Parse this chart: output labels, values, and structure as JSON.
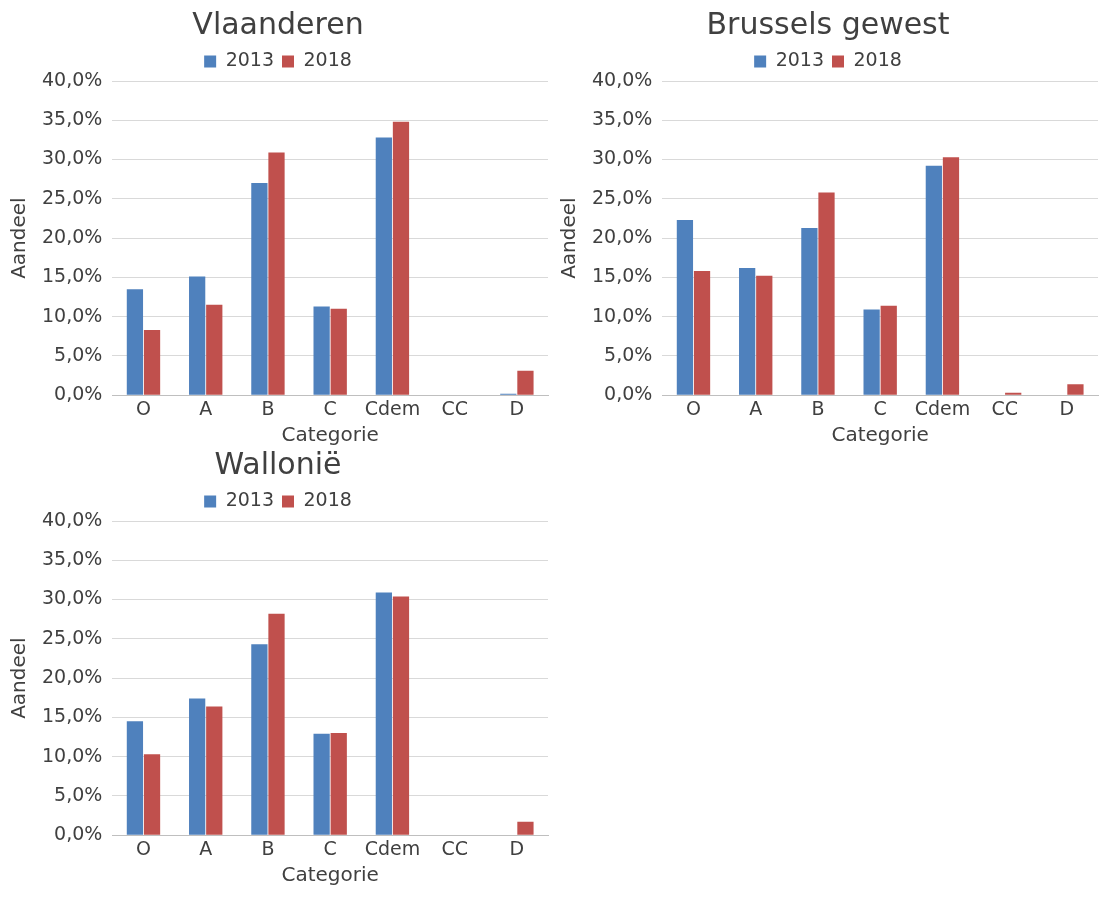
{
  "chart_data": [
    {
      "type": "bar",
      "title": "Vlaanderen",
      "xlabel": "Categorie",
      "ylabel": "Aandeel",
      "categories": [
        "O",
        "A",
        "B",
        "C",
        "Cdem",
        "CC",
        "D"
      ],
      "series": [
        {
          "name": "2013",
          "color": "#4f81bd",
          "values": [
            13.5,
            15.1,
            27.0,
            11.3,
            32.8,
            0,
            0.2
          ]
        },
        {
          "name": "2018",
          "color": "#c0504d",
          "values": [
            8.3,
            11.5,
            30.9,
            11.0,
            34.8,
            0,
            3.1
          ]
        }
      ],
      "ylim": [
        0,
        40
      ],
      "yticks": [
        {
          "value": 0,
          "label": "0,0%"
        },
        {
          "value": 5,
          "label": "5,0%"
        },
        {
          "value": 10,
          "label": "10,0%"
        },
        {
          "value": 15,
          "label": "15,0%"
        },
        {
          "value": 20,
          "label": "20,0%"
        },
        {
          "value": 25,
          "label": "25,0%"
        },
        {
          "value": 30,
          "label": "30,0%"
        },
        {
          "value": 35,
          "label": "35,0%"
        },
        {
          "value": 40,
          "label": "40,0%"
        }
      ],
      "grid": "y",
      "legend": "top"
    },
    {
      "type": "bar",
      "title": "Brussels gewest",
      "xlabel": "Categorie",
      "ylabel": "Aandeel",
      "categories": [
        "O",
        "A",
        "B",
        "C",
        "Cdem",
        "CC",
        "D"
      ],
      "series": [
        {
          "name": "2013",
          "color": "#4f81bd",
          "values": [
            22.3,
            16.2,
            21.3,
            10.9,
            29.2,
            0,
            0
          ]
        },
        {
          "name": "2018",
          "color": "#c0504d",
          "values": [
            15.8,
            15.2,
            25.8,
            11.4,
            30.3,
            0.3,
            1.4
          ]
        }
      ],
      "ylim": [
        0,
        40
      ],
      "yticks": [
        {
          "value": 0,
          "label": "0,0%"
        },
        {
          "value": 5,
          "label": "5,0%"
        },
        {
          "value": 10,
          "label": "10,0%"
        },
        {
          "value": 15,
          "label": "15,0%"
        },
        {
          "value": 20,
          "label": "20,0%"
        },
        {
          "value": 25,
          "label": "25,0%"
        },
        {
          "value": 30,
          "label": "30,0%"
        },
        {
          "value": 35,
          "label": "35,0%"
        },
        {
          "value": 40,
          "label": "40,0%"
        }
      ],
      "grid": "y",
      "legend": "top"
    },
    {
      "type": "bar",
      "title": "Wallonië",
      "xlabel": "Categorie",
      "ylabel": "Aandeel",
      "categories": [
        "O",
        "A",
        "B",
        "C",
        "Cdem",
        "CC",
        "D"
      ],
      "series": [
        {
          "name": "2013",
          "color": "#4f81bd",
          "values": [
            14.5,
            17.4,
            24.3,
            12.9,
            30.9,
            0,
            0
          ]
        },
        {
          "name": "2018",
          "color": "#c0504d",
          "values": [
            10.3,
            16.4,
            28.2,
            13.0,
            30.4,
            0,
            1.7
          ]
        }
      ],
      "ylim": [
        0,
        40
      ],
      "yticks": [
        {
          "value": 0,
          "label": "0,0%"
        },
        {
          "value": 5,
          "label": "5,0%"
        },
        {
          "value": 10,
          "label": "10,0%"
        },
        {
          "value": 15,
          "label": "15,0%"
        },
        {
          "value": 20,
          "label": "20,0%"
        },
        {
          "value": 25,
          "label": "25,0%"
        },
        {
          "value": 30,
          "label": "30,0%"
        },
        {
          "value": 35,
          "label": "35,0%"
        },
        {
          "value": 40,
          "label": "40,0%"
        }
      ],
      "grid": "y",
      "legend": "top"
    }
  ]
}
